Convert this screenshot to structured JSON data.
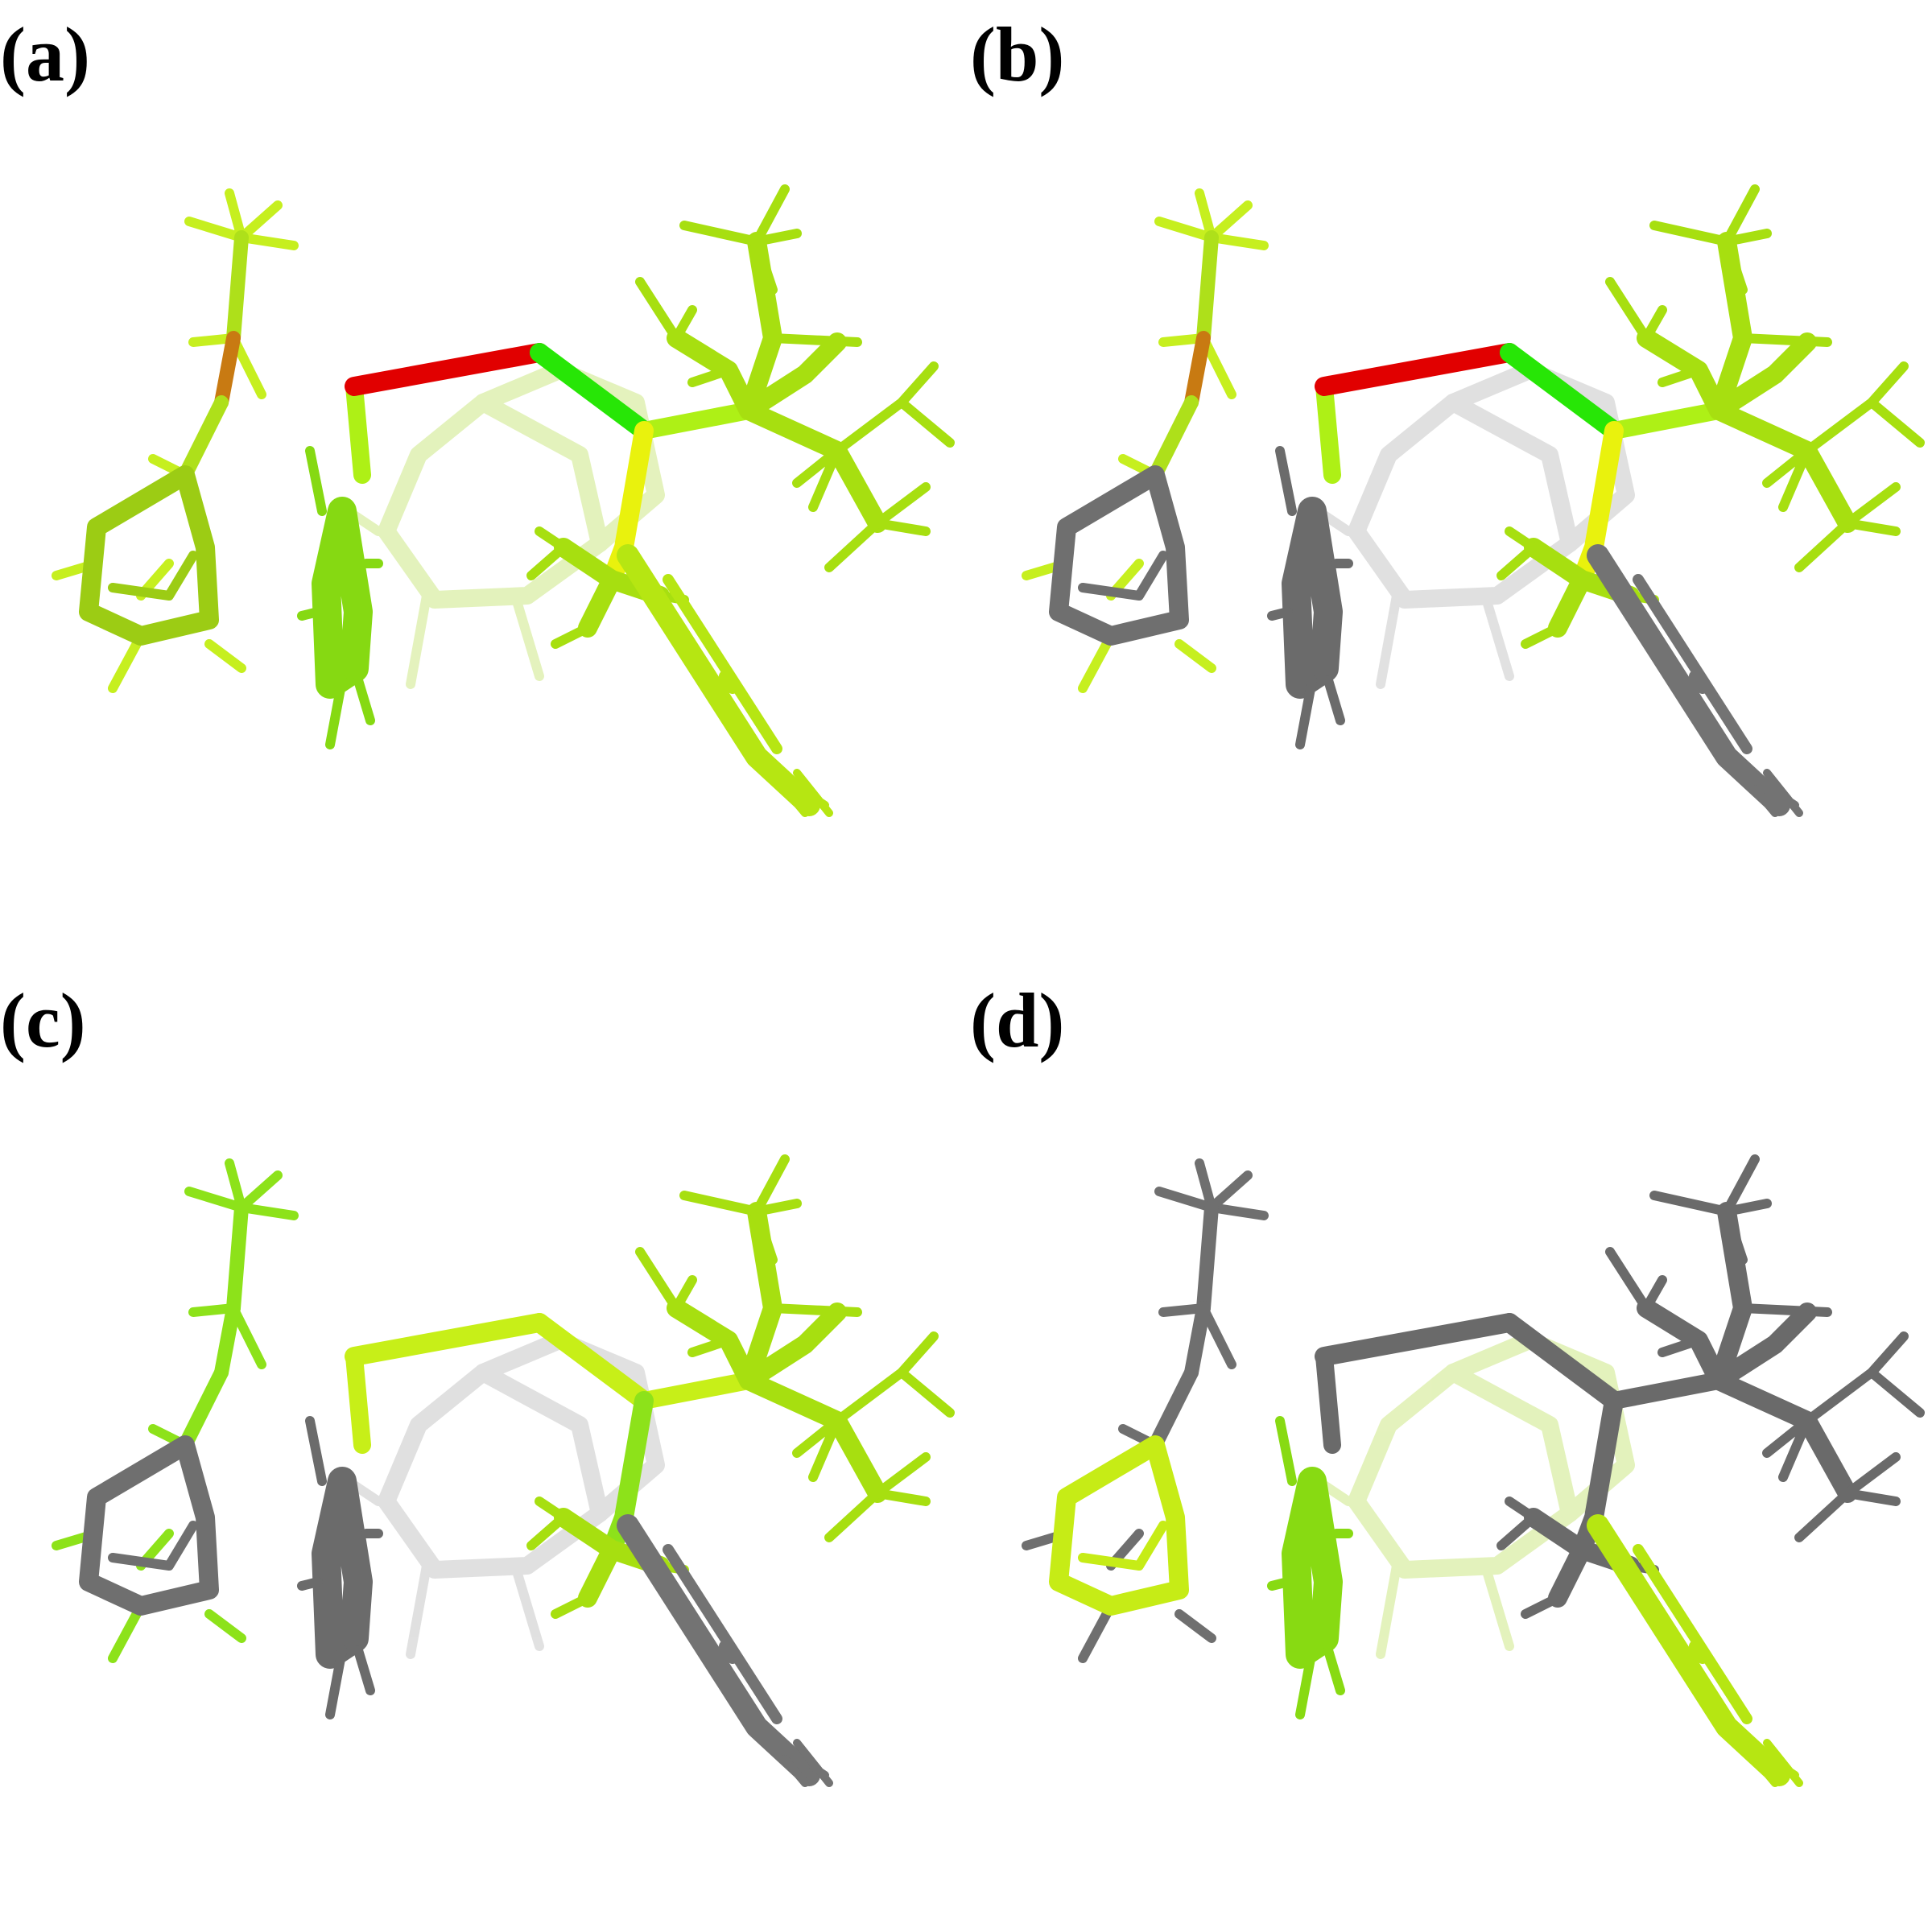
{
  "panels": [
    {
      "label": "(a)",
      "left_molecule": {
        "hydrogen": "#c6ef1f",
        "link": "#aee01a",
        "lower_bond": "#c87a12",
        "ring": "#9ccc14",
        "ring_h": "#b9ef17"
      },
      "main_chain": {
        "upper": "#aef016",
        "red_bond": "#e10000",
        "green_bond": "#27e606",
        "descending": "#e9f20d",
        "aromatic": "#86d912",
        "ghost": "#cde887",
        "tbutyl": "#a7df10",
        "tail": "#b6e612"
      }
    },
    {
      "label": "(b)",
      "left_molecule": {
        "hydrogen": "#c6ef1f",
        "link": "#aee01a",
        "lower_bond": "#c87a12",
        "ring": "#6f6f6f",
        "ring_h": "#6f6f6f"
      },
      "main_chain": {
        "upper": "#aef016",
        "red_bond": "#e10000",
        "green_bond": "#27e606",
        "descending": "#e9f20d",
        "aromatic": "#6b6b6b",
        "ghost": "#c8c8c8",
        "tbutyl": "#a7df10",
        "tail": "#737373"
      }
    },
    {
      "label": "(c)",
      "left_molecule": {
        "hydrogen": "#8de21a",
        "link": "#8de21a",
        "lower_bond": "#8de21a",
        "ring": "#6f6f6f",
        "ring_h": "#6f6f6f"
      },
      "main_chain": {
        "upper": "#c7ef18",
        "red_bond": "#c7ef18",
        "green_bond": "#c7ef18",
        "descending": "#8de21a",
        "aromatic": "#6b6b6b",
        "ghost": "#c8c8c8",
        "tbutyl": "#a7df10",
        "tail": "#737373"
      }
    },
    {
      "label": "(d)",
      "left_molecule": {
        "hydrogen": "#6f6f6f",
        "link": "#6f6f6f",
        "lower_bond": "#6f6f6f",
        "ring": "#c6ec16",
        "ring_h": "#c6ec16"
      },
      "main_chain": {
        "upper": "#6a6a6a",
        "red_bond": "#6a6a6a",
        "green_bond": "#6a6a6a",
        "descending": "#6a6a6a",
        "aromatic": "#88da12",
        "ghost": "#cde887",
        "tbutyl": "#6a6a6a",
        "tail": "#b6e612"
      }
    }
  ]
}
